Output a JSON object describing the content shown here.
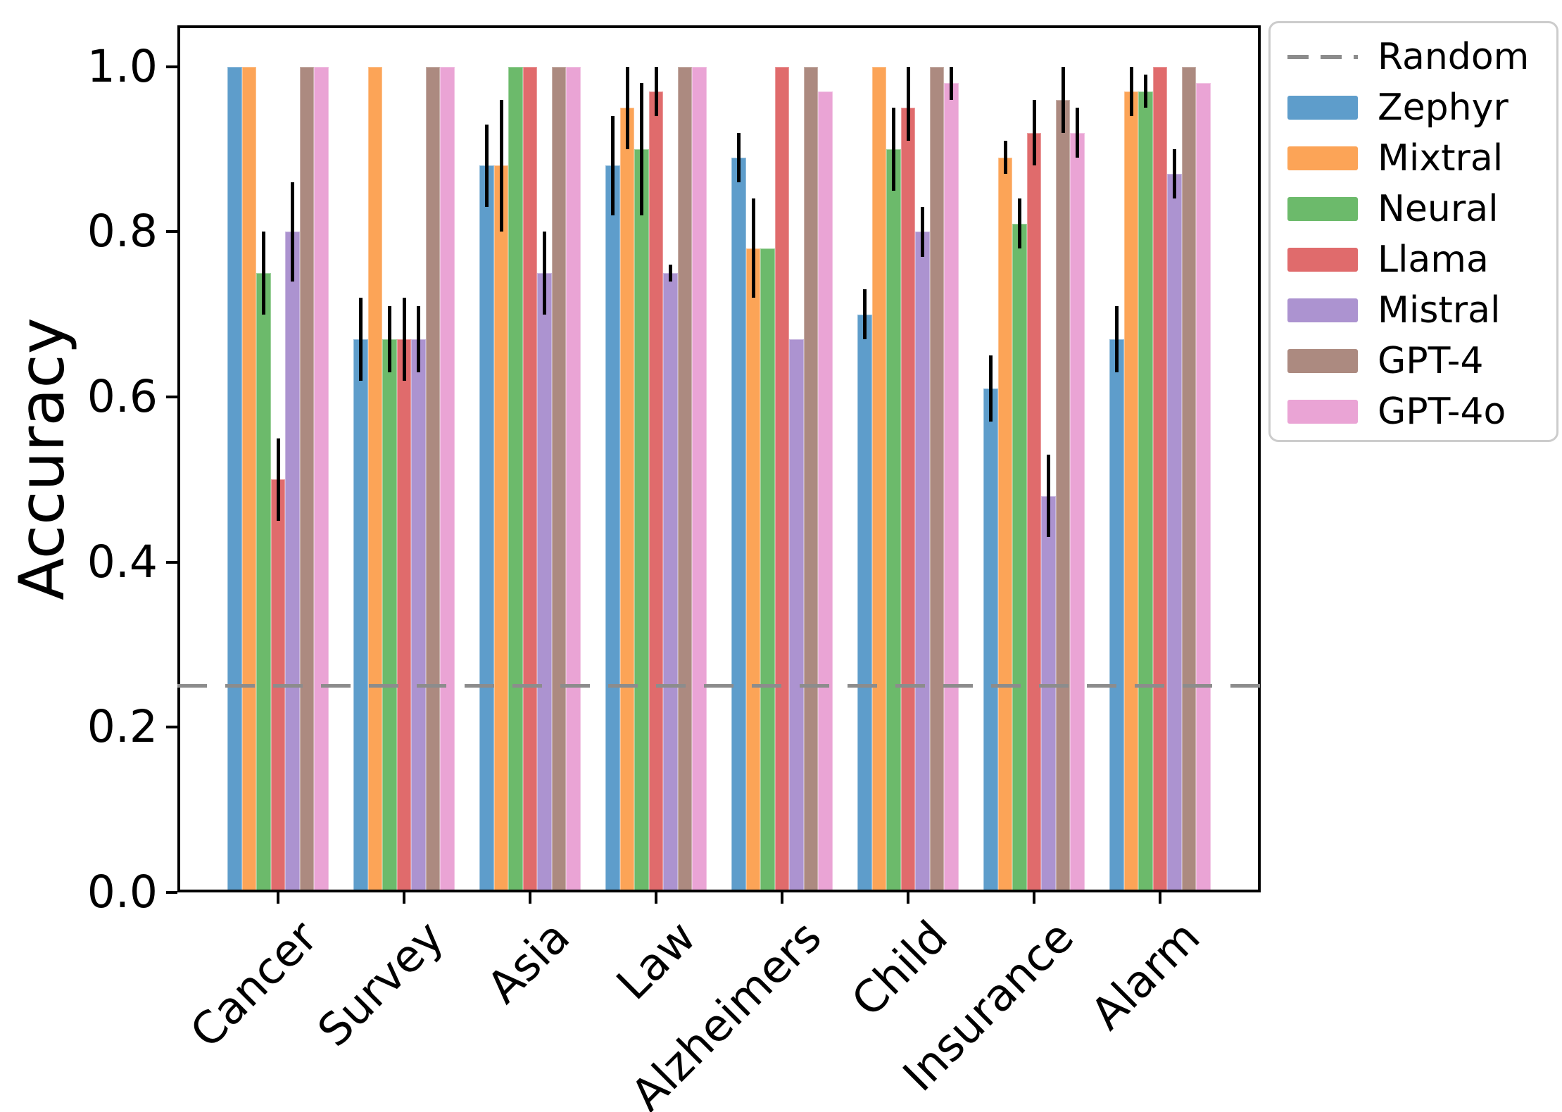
{
  "chart_data": {
    "type": "bar",
    "title": "",
    "xlabel": "",
    "ylabel": "Accuracy",
    "categories": [
      "Cancer",
      "Survey",
      "Asia",
      "Law",
      "Alzheimers",
      "Child",
      "Insurance",
      "Alarm"
    ],
    "ylim": [
      0,
      1.05
    ],
    "yticks": [
      0.0,
      0.2,
      0.4,
      0.6,
      0.8,
      1.0
    ],
    "ytick_labels": [
      "0.0",
      "0.2",
      "0.4",
      "0.6",
      "0.8",
      "1.0"
    ],
    "grid": false,
    "legend_position": "outside-top-right",
    "error_bar_color": "#000000",
    "reference_line": {
      "label": "Random",
      "value": 0.25,
      "style": "dashed",
      "color": "#8C8C8C"
    },
    "series": [
      {
        "name": "Zephyr",
        "color": "#5E9DCB",
        "values": [
          1.0,
          0.67,
          0.88,
          0.88,
          0.89,
          0.7,
          0.61,
          0.67
        ],
        "err_lo": [
          null,
          0.62,
          0.83,
          0.82,
          0.86,
          0.67,
          0.57,
          0.63
        ],
        "err_hi": [
          null,
          0.72,
          0.93,
          0.94,
          0.92,
          0.73,
          0.65,
          0.71
        ]
      },
      {
        "name": "Mixtral",
        "color": "#FCA457",
        "values": [
          1.0,
          1.0,
          0.88,
          0.95,
          0.78,
          1.0,
          0.89,
          0.97
        ],
        "err_lo": [
          null,
          null,
          0.8,
          0.9,
          0.72,
          null,
          0.87,
          0.94
        ],
        "err_hi": [
          null,
          null,
          0.96,
          1.0,
          0.84,
          null,
          0.91,
          1.0
        ]
      },
      {
        "name": "Neural",
        "color": "#6CBA6B",
        "values": [
          0.75,
          0.67,
          1.0,
          0.9,
          0.78,
          0.9,
          0.81,
          0.97
        ],
        "err_lo": [
          0.7,
          0.63,
          null,
          0.82,
          null,
          0.85,
          0.78,
          0.95
        ],
        "err_hi": [
          0.8,
          0.71,
          null,
          0.98,
          null,
          0.95,
          0.84,
          0.99
        ]
      },
      {
        "name": "Llama",
        "color": "#E06B6C",
        "values": [
          0.5,
          0.67,
          1.0,
          0.97,
          1.0,
          0.95,
          0.92,
          1.0
        ],
        "err_lo": [
          0.45,
          0.62,
          null,
          0.94,
          null,
          0.91,
          0.88,
          null
        ],
        "err_hi": [
          0.55,
          0.72,
          null,
          1.0,
          null,
          1.0,
          0.96,
          null
        ]
      },
      {
        "name": "Mistral",
        "color": "#AC93D0",
        "values": [
          0.8,
          0.67,
          0.75,
          0.75,
          0.67,
          0.8,
          0.48,
          0.87
        ],
        "err_lo": [
          0.74,
          0.63,
          0.7,
          0.74,
          null,
          0.77,
          0.43,
          0.84
        ],
        "err_hi": [
          0.86,
          0.71,
          0.8,
          0.76,
          null,
          0.83,
          0.53,
          0.9
        ]
      },
      {
        "name": "GPT-4",
        "color": "#AC8A80",
        "values": [
          1.0,
          1.0,
          1.0,
          1.0,
          1.0,
          1.0,
          0.96,
          1.0
        ],
        "err_lo": [
          null,
          null,
          null,
          null,
          null,
          null,
          0.92,
          null
        ],
        "err_hi": [
          null,
          null,
          null,
          null,
          null,
          null,
          1.0,
          null
        ]
      },
      {
        "name": "GPT-4o",
        "color": "#EAA4D5",
        "values": [
          1.0,
          1.0,
          1.0,
          1.0,
          0.97,
          0.98,
          0.92,
          0.98
        ],
        "err_lo": [
          null,
          null,
          null,
          null,
          null,
          0.96,
          0.89,
          null
        ],
        "err_hi": [
          null,
          null,
          null,
          null,
          null,
          1.0,
          0.95,
          null
        ]
      }
    ],
    "legend_entries": [
      "Random",
      "Zephyr",
      "Mixtral",
      "Neural",
      "Llama",
      "Mistral",
      "GPT-4",
      "GPT-4o"
    ]
  }
}
